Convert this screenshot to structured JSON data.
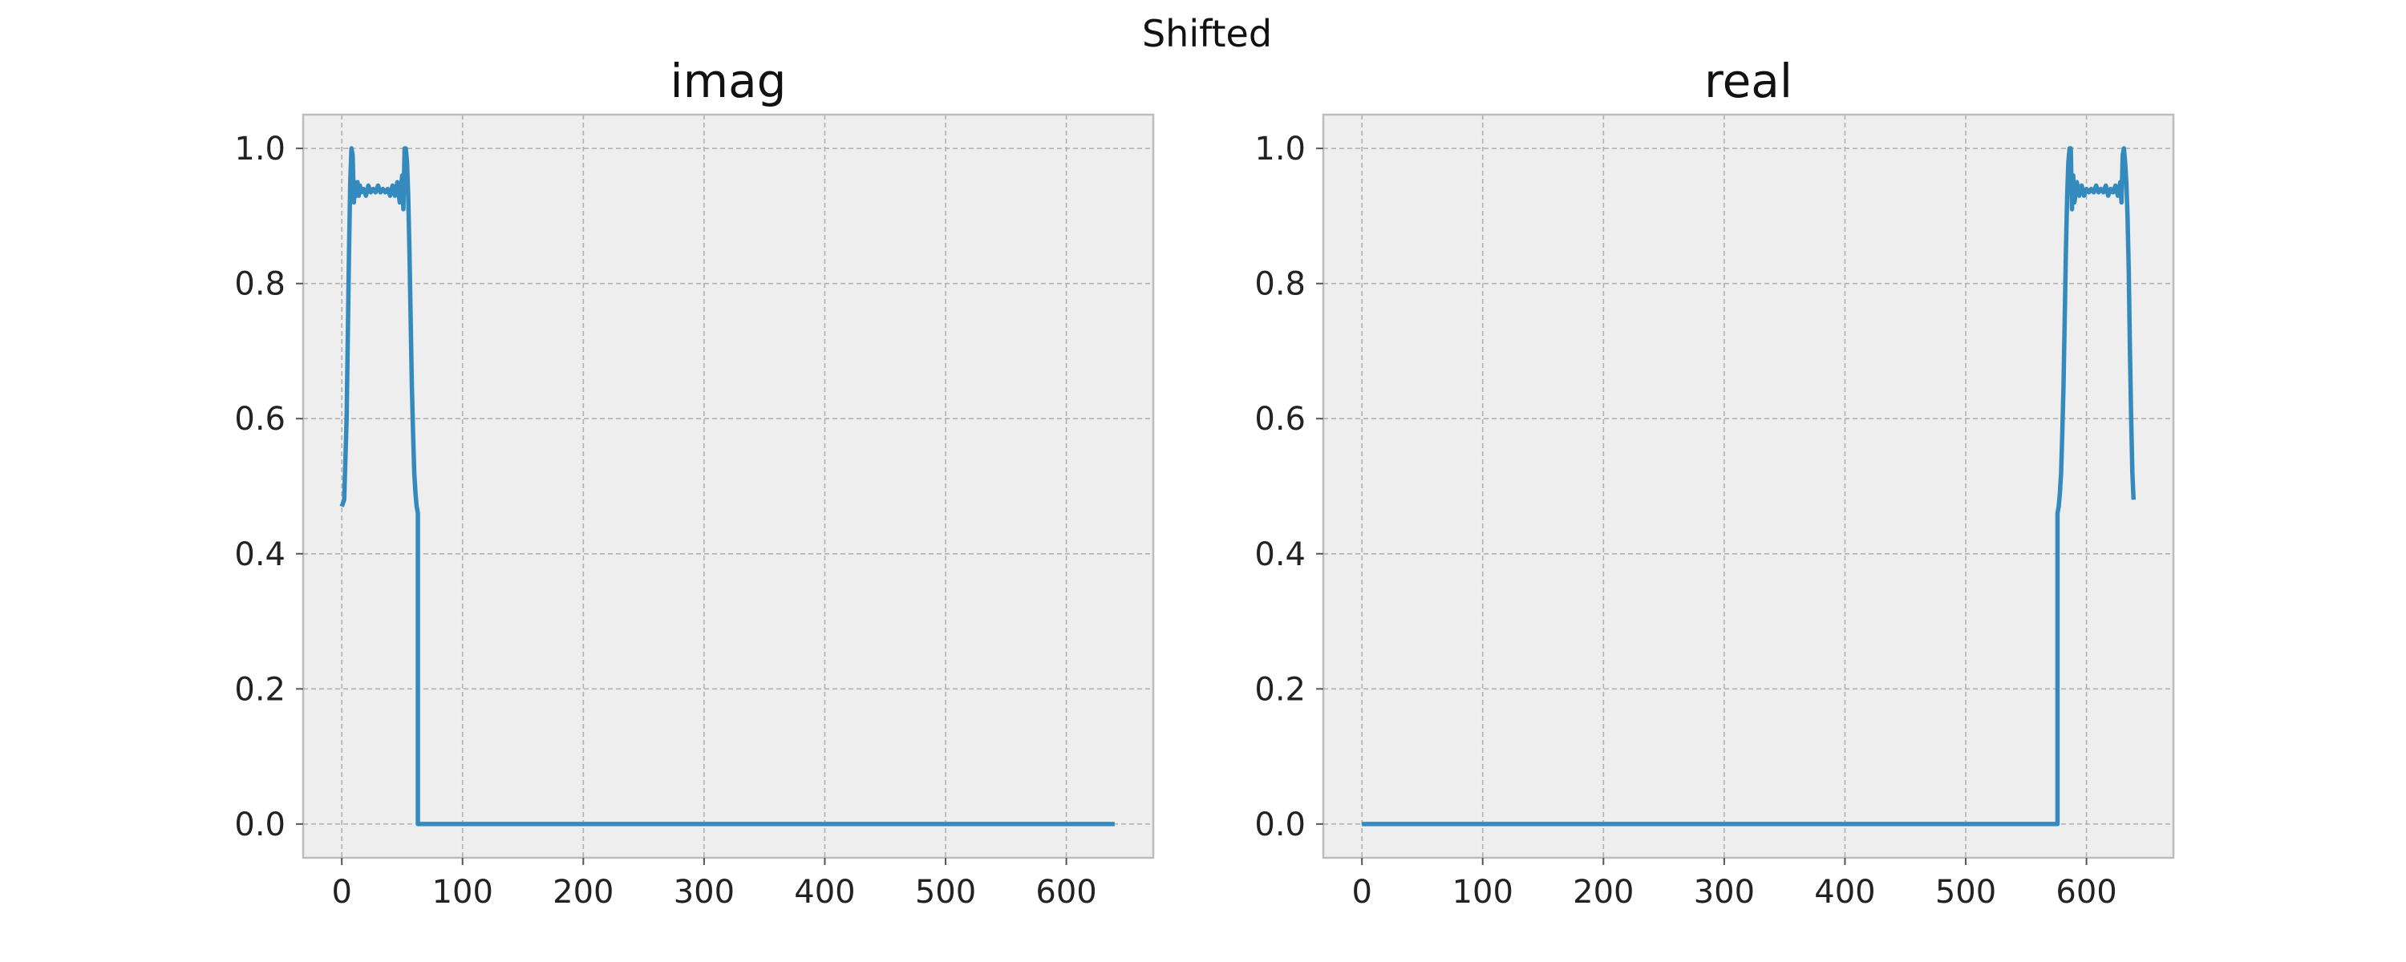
{
  "chart_data": {
    "suptitle": "Shifted",
    "colors": {
      "background": "#eeeeee",
      "grid": "#b0b0b0",
      "spine": "#bcbcbc",
      "line": "#348abd"
    },
    "grid": true,
    "panels": [
      {
        "type": "line",
        "title": "imag",
        "xlabel": "",
        "ylabel": "",
        "xlim": [
          -32,
          672
        ],
        "ylim": [
          -0.05,
          1.05
        ],
        "xticks": [
          0,
          100,
          200,
          300,
          400,
          500,
          600
        ],
        "yticks": [
          0.0,
          0.2,
          0.4,
          0.6,
          0.8,
          1.0
        ],
        "x": [
          0,
          2,
          4,
          6,
          7,
          8,
          9,
          10,
          11,
          12,
          13,
          14,
          15,
          16,
          18,
          20,
          22,
          24,
          26,
          28,
          30,
          32,
          34,
          36,
          38,
          40,
          42,
          44,
          46,
          48,
          50,
          51,
          52,
          53,
          54,
          55,
          56,
          57,
          58,
          59,
          60,
          61,
          62,
          63,
          63,
          64,
          100,
          200,
          300,
          400,
          500,
          600,
          640
        ],
        "y": [
          0.47,
          0.48,
          0.6,
          0.85,
          0.95,
          1.0,
          0.99,
          0.92,
          0.95,
          0.93,
          0.95,
          0.93,
          0.945,
          0.935,
          0.94,
          0.93,
          0.945,
          0.935,
          0.94,
          0.935,
          0.945,
          0.935,
          0.94,
          0.935,
          0.94,
          0.93,
          0.945,
          0.93,
          0.95,
          0.92,
          0.96,
          0.91,
          1.0,
          1.0,
          0.98,
          0.93,
          0.85,
          0.75,
          0.65,
          0.58,
          0.52,
          0.49,
          0.47,
          0.46,
          0.0,
          0.0,
          0.0,
          0.0,
          0.0,
          0.0,
          0.0,
          0.0,
          0.0
        ]
      },
      {
        "type": "line",
        "title": "real",
        "xlabel": "",
        "ylabel": "",
        "xlim": [
          -32,
          672
        ],
        "ylim": [
          -0.05,
          1.05
        ],
        "xticks": [
          0,
          100,
          200,
          300,
          400,
          500,
          600
        ],
        "yticks": [
          0.0,
          0.2,
          0.4,
          0.6,
          0.8,
          1.0
        ],
        "x": [
          0,
          100,
          200,
          300,
          400,
          500,
          576,
          576,
          577,
          578,
          579,
          580,
          581,
          582,
          583,
          584,
          585,
          586,
          587,
          588,
          589,
          590,
          592,
          594,
          596,
          598,
          600,
          602,
          604,
          606,
          608,
          610,
          612,
          614,
          616,
          618,
          620,
          622,
          624,
          626,
          628,
          629,
          630,
          631,
          632,
          633,
          634,
          635,
          636,
          637,
          638,
          639
        ],
        "y": [
          0.0,
          0.0,
          0.0,
          0.0,
          0.0,
          0.0,
          0.0,
          0.46,
          0.47,
          0.49,
          0.52,
          0.58,
          0.65,
          0.75,
          0.85,
          0.93,
          0.98,
          1.0,
          1.0,
          0.91,
          0.96,
          0.92,
          0.95,
          0.93,
          0.945,
          0.93,
          0.94,
          0.935,
          0.94,
          0.935,
          0.945,
          0.935,
          0.94,
          0.935,
          0.945,
          0.93,
          0.94,
          0.935,
          0.945,
          0.93,
          0.95,
          0.92,
          0.99,
          1.0,
          0.98,
          0.95,
          0.9,
          0.82,
          0.7,
          0.6,
          0.52,
          0.48
        ]
      }
    ]
  }
}
